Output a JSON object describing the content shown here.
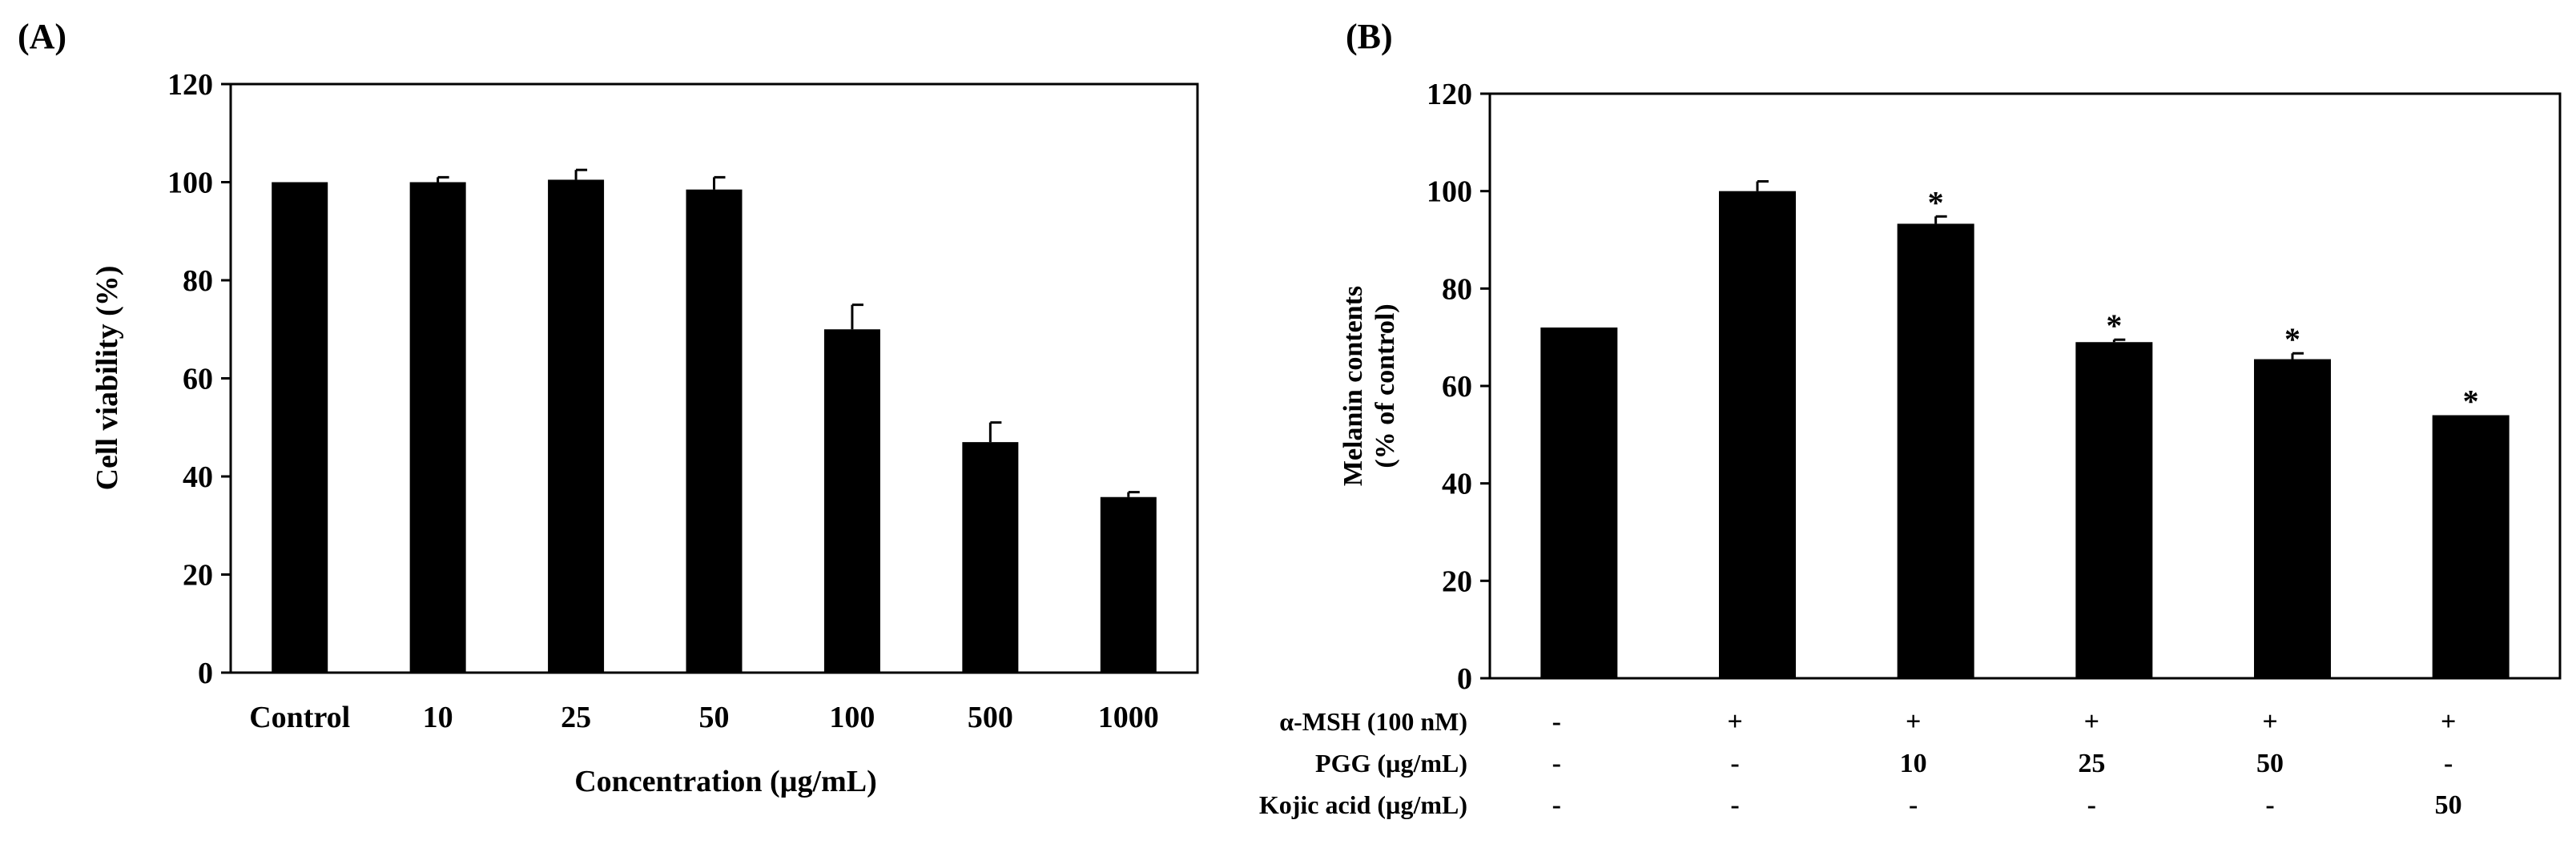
{
  "chart_data": [
    {
      "type": "bar",
      "panel_label": "(A)",
      "title": "",
      "xlabel": "Concentration (µg/mL)",
      "ylabel": "Cell viability (%)",
      "ylim": [
        0,
        120
      ],
      "yticks": [
        "0",
        "20",
        "40",
        "60",
        "80",
        "100",
        "120"
      ],
      "categories": [
        "Control",
        "10",
        "25",
        "50",
        "100",
        "500",
        "1000"
      ],
      "values": [
        100,
        100,
        100.5,
        98.5,
        70,
        47,
        35.8
      ],
      "errors": [
        0,
        1,
        2,
        2.5,
        5,
        4,
        1
      ],
      "grid": false,
      "color": "#000000"
    },
    {
      "type": "bar",
      "panel_label": "(B)",
      "title": "",
      "ylabel_lines": [
        "Melanin contents",
        "(% of control)"
      ],
      "ylim": [
        0,
        120
      ],
      "yticks": [
        "0",
        "20",
        "40",
        "60",
        "80",
        "100",
        "120"
      ],
      "values": [
        72,
        100,
        93.3,
        69,
        65.5,
        54
      ],
      "errors": [
        0,
        2,
        1.5,
        0.5,
        1.2,
        0
      ],
      "significance": [
        "",
        "",
        "*",
        "*",
        "*",
        "*"
      ],
      "treatment_rows": [
        {
          "label": "α-MSH (100 nM)",
          "values": [
            "-",
            "+",
            "+",
            "+",
            "+",
            "+"
          ]
        },
        {
          "label": "PGG (µg/mL)",
          "values": [
            "-",
            "-",
            "10",
            "25",
            "50",
            "-"
          ]
        },
        {
          "label": "Kojic acid (µg/mL)",
          "values": [
            "-",
            "-",
            "-",
            "-",
            "-",
            "50"
          ]
        }
      ],
      "grid": false,
      "color": "#000000"
    }
  ]
}
